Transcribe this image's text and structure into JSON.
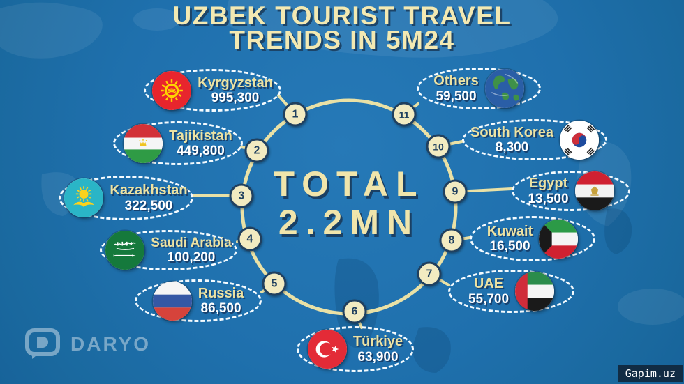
{
  "title": {
    "line1": "UZBEK TOURIST TRAVEL",
    "line2": "TRENDS IN 5M24"
  },
  "center": {
    "label": "TOTAL",
    "value": "2.2MN"
  },
  "countries": [
    {
      "rank": 1,
      "name": "Kyrgyzstan",
      "value": "995,300",
      "flag": "kyrgyzstan",
      "flag_icon": "kyrgyzstan-flag-icon"
    },
    {
      "rank": 2,
      "name": "Tajikistan",
      "value": "449,800",
      "flag": "tajikistan",
      "flag_icon": "tajikistan-flag-icon"
    },
    {
      "rank": 3,
      "name": "Kazakhstan",
      "value": "322,500",
      "flag": "kazakhstan",
      "flag_icon": "kazakhstan-flag-icon"
    },
    {
      "rank": 4,
      "name": "Saudi Arabia",
      "value": "100,200",
      "flag": "saudi-arabia",
      "flag_icon": "saudi-arabia-flag-icon"
    },
    {
      "rank": 5,
      "name": "Russia",
      "value": "86,500",
      "flag": "russia",
      "flag_icon": "russia-flag-icon"
    },
    {
      "rank": 6,
      "name": "Türkiye",
      "value": "63,900",
      "flag": "turkiye",
      "flag_icon": "turkiye-flag-icon"
    },
    {
      "rank": 7,
      "name": "UAE",
      "value": "55,700",
      "flag": "uae",
      "flag_icon": "uae-flag-icon"
    },
    {
      "rank": 8,
      "name": "Kuwait",
      "value": "16,500",
      "flag": "kuwait",
      "flag_icon": "kuwait-flag-icon"
    },
    {
      "rank": 9,
      "name": "Egypt",
      "value": "13,500",
      "flag": "egypt",
      "flag_icon": "egypt-flag-icon"
    },
    {
      "rank": 10,
      "name": "South Korea",
      "value": "8,300",
      "flag": "south-korea",
      "flag_icon": "south-korea-flag-icon"
    },
    {
      "rank": 11,
      "name": "Others",
      "value": "59,500",
      "flag": "globe",
      "flag_icon": "globe-icon"
    }
  ],
  "branding": {
    "logo_text": "DARYO",
    "watermark": "Gapim.uz"
  },
  "colors": {
    "background_blue": "#1f70ad",
    "cream_accent": "#f0e5ab",
    "navy_shadow": "#1c4468",
    "oval_dash_white": "#f4fbff",
    "badge_fill": "#f2ebc1",
    "badge_navy": "#20405f"
  },
  "chart_data": {
    "type": "table",
    "title": "Uzbek Tourist Travel Trends in 5M24",
    "total_label": "TOTAL",
    "total_value": "2.2MN",
    "total_numeric_estimate": 2200000,
    "categories": [
      "Kyrgyzstan",
      "Tajikistan",
      "Kazakhstan",
      "Saudi Arabia",
      "Russia",
      "Türkiye",
      "UAE",
      "Kuwait",
      "Egypt",
      "South Korea",
      "Others"
    ],
    "values": [
      995300,
      449800,
      322500,
      100200,
      86500,
      63900,
      55700,
      16500,
      13500,
      8300,
      59500
    ],
    "ranks": [
      1,
      2,
      3,
      4,
      5,
      6,
      7,
      8,
      9,
      10,
      11
    ],
    "layout": "circular ring of 11 numbered nodes around central total"
  }
}
